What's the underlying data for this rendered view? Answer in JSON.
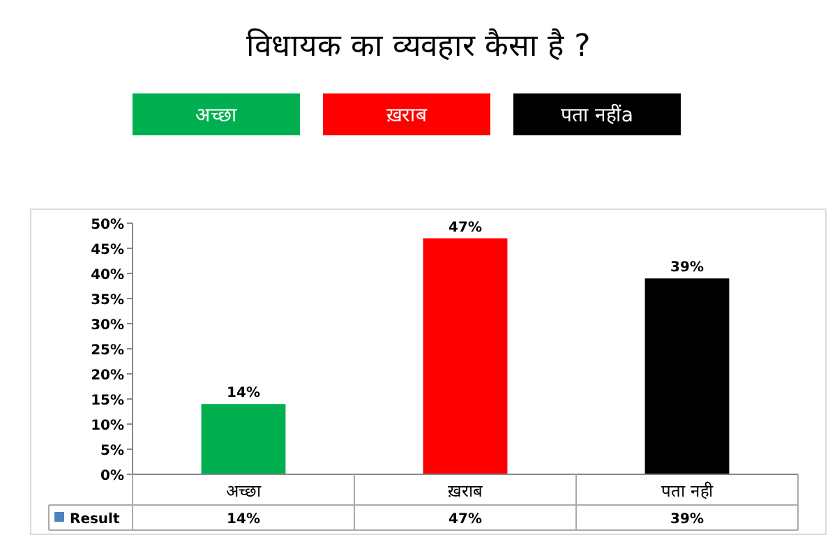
{
  "chart_data": {
    "type": "bar",
    "title": "विधायक का व्यवहार कैसा है ?",
    "annotations": [
      "अच्छा",
      "ख़राब",
      "पता नहींa"
    ],
    "categories": [
      "अच्छा",
      "ख़राब",
      "पता नही"
    ],
    "series": [
      {
        "name": "Result",
        "colors": [
          "#00b050",
          "#ff0000",
          "#000000"
        ],
        "values": [
          14,
          47,
          39
        ],
        "value_labels": [
          "14%",
          "47%",
          "39%"
        ]
      }
    ],
    "ylim": [
      0,
      50
    ],
    "yticks": [
      {
        "value": 0,
        "label": "0%"
      },
      {
        "value": 5,
        "label": "5%"
      },
      {
        "value": 10,
        "label": "10%"
      },
      {
        "value": 15,
        "label": "15%"
      },
      {
        "value": 20,
        "label": "20%"
      },
      {
        "value": 25,
        "label": "25%"
      },
      {
        "value": 30,
        "label": "30%"
      },
      {
        "value": 35,
        "label": "35%"
      },
      {
        "value": 40,
        "label": "40%"
      },
      {
        "value": 45,
        "label": "45%"
      },
      {
        "value": 50,
        "label": "50%"
      }
    ],
    "grid": false,
    "legend": "bottom"
  }
}
